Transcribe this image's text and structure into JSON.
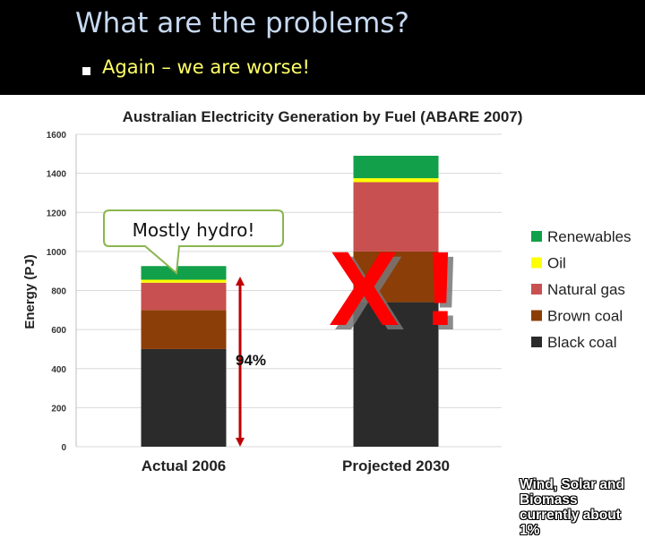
{
  "slide": {
    "title": "What are the problems?",
    "bullet": "Again – we are worse!"
  },
  "annotations": {
    "callout": "Mostly hydro!",
    "percent": "94%",
    "cross": "X",
    "exclaim": "!",
    "note": "Wind, Solar and Biomass currently about 1%"
  },
  "chart_data": {
    "type": "bar",
    "stacked": true,
    "title": "Australian Electricity Generation by Fuel (ABARE 2007)",
    "ylabel": "Energy (PJ)",
    "ylim": [
      0,
      1600
    ],
    "yticks": [
      0,
      200,
      400,
      600,
      800,
      1000,
      1200,
      1400,
      1600
    ],
    "categories": [
      "Actual 2006",
      "Projected 2030"
    ],
    "legend_position": "right",
    "series": [
      {
        "name": "Black coal",
        "color": "#2b2b2b",
        "values": [
          500,
          740
        ]
      },
      {
        "name": "Brown coal",
        "color": "#8c3e08",
        "values": [
          200,
          260
        ]
      },
      {
        "name": "Natural gas",
        "color": "#c85050",
        "values": [
          140,
          355
        ]
      },
      {
        "name": "Oil",
        "color": "#ffff00",
        "values": [
          15,
          20
        ]
      },
      {
        "name": "Renewables",
        "color": "#12a04a",
        "values": [
          70,
          115
        ]
      }
    ]
  }
}
